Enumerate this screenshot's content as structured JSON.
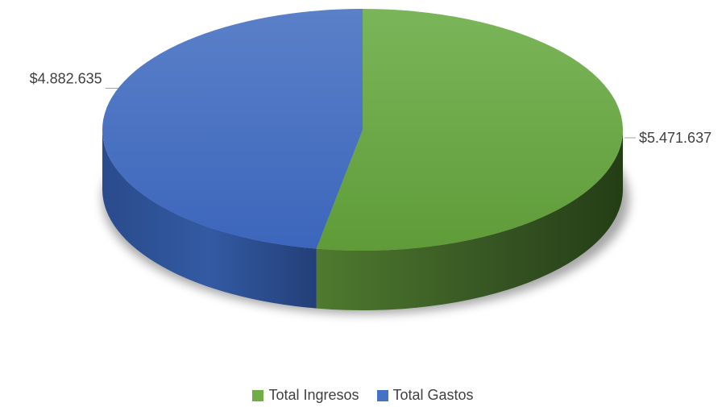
{
  "chart_data": {
    "type": "pie",
    "title": "",
    "style": "3d",
    "start_angle_deg": 0,
    "direction": "clockwise",
    "legend_position": "bottom",
    "slices": [
      {
        "name": "Total Ingresos",
        "value": 5471637,
        "label": "$5.471.637",
        "color": "#70ad47"
      },
      {
        "name": "Total Gastos",
        "value": 4882635,
        "label": "$4.882.635",
        "color": "#4472c4"
      }
    ]
  }
}
